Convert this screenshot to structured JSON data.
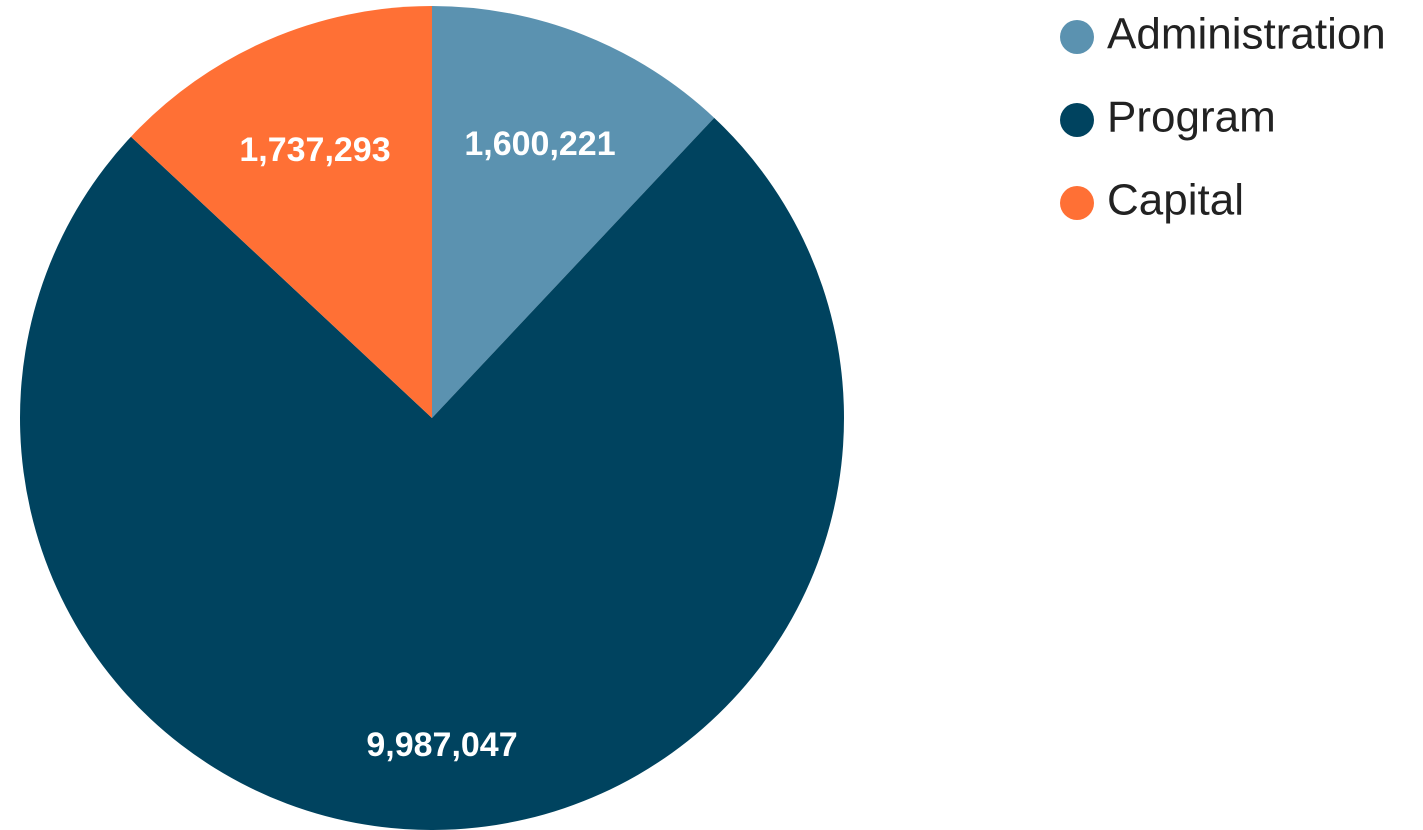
{
  "chart_data": {
    "type": "pie",
    "title": "",
    "slices": [
      {
        "name": "Administration",
        "value": 1600221,
        "label": "1,600,221",
        "color": "#5b92b0"
      },
      {
        "name": "Program",
        "value": 9987047,
        "label": "9,987,047",
        "color": "#00435f"
      },
      {
        "name": "Capital",
        "value": 1737293,
        "label": "1,737,293",
        "color": "#ff7035"
      }
    ],
    "start": "top",
    "direction": "clockwise",
    "legend": {
      "position": "top-right",
      "marker": "circle"
    }
  }
}
